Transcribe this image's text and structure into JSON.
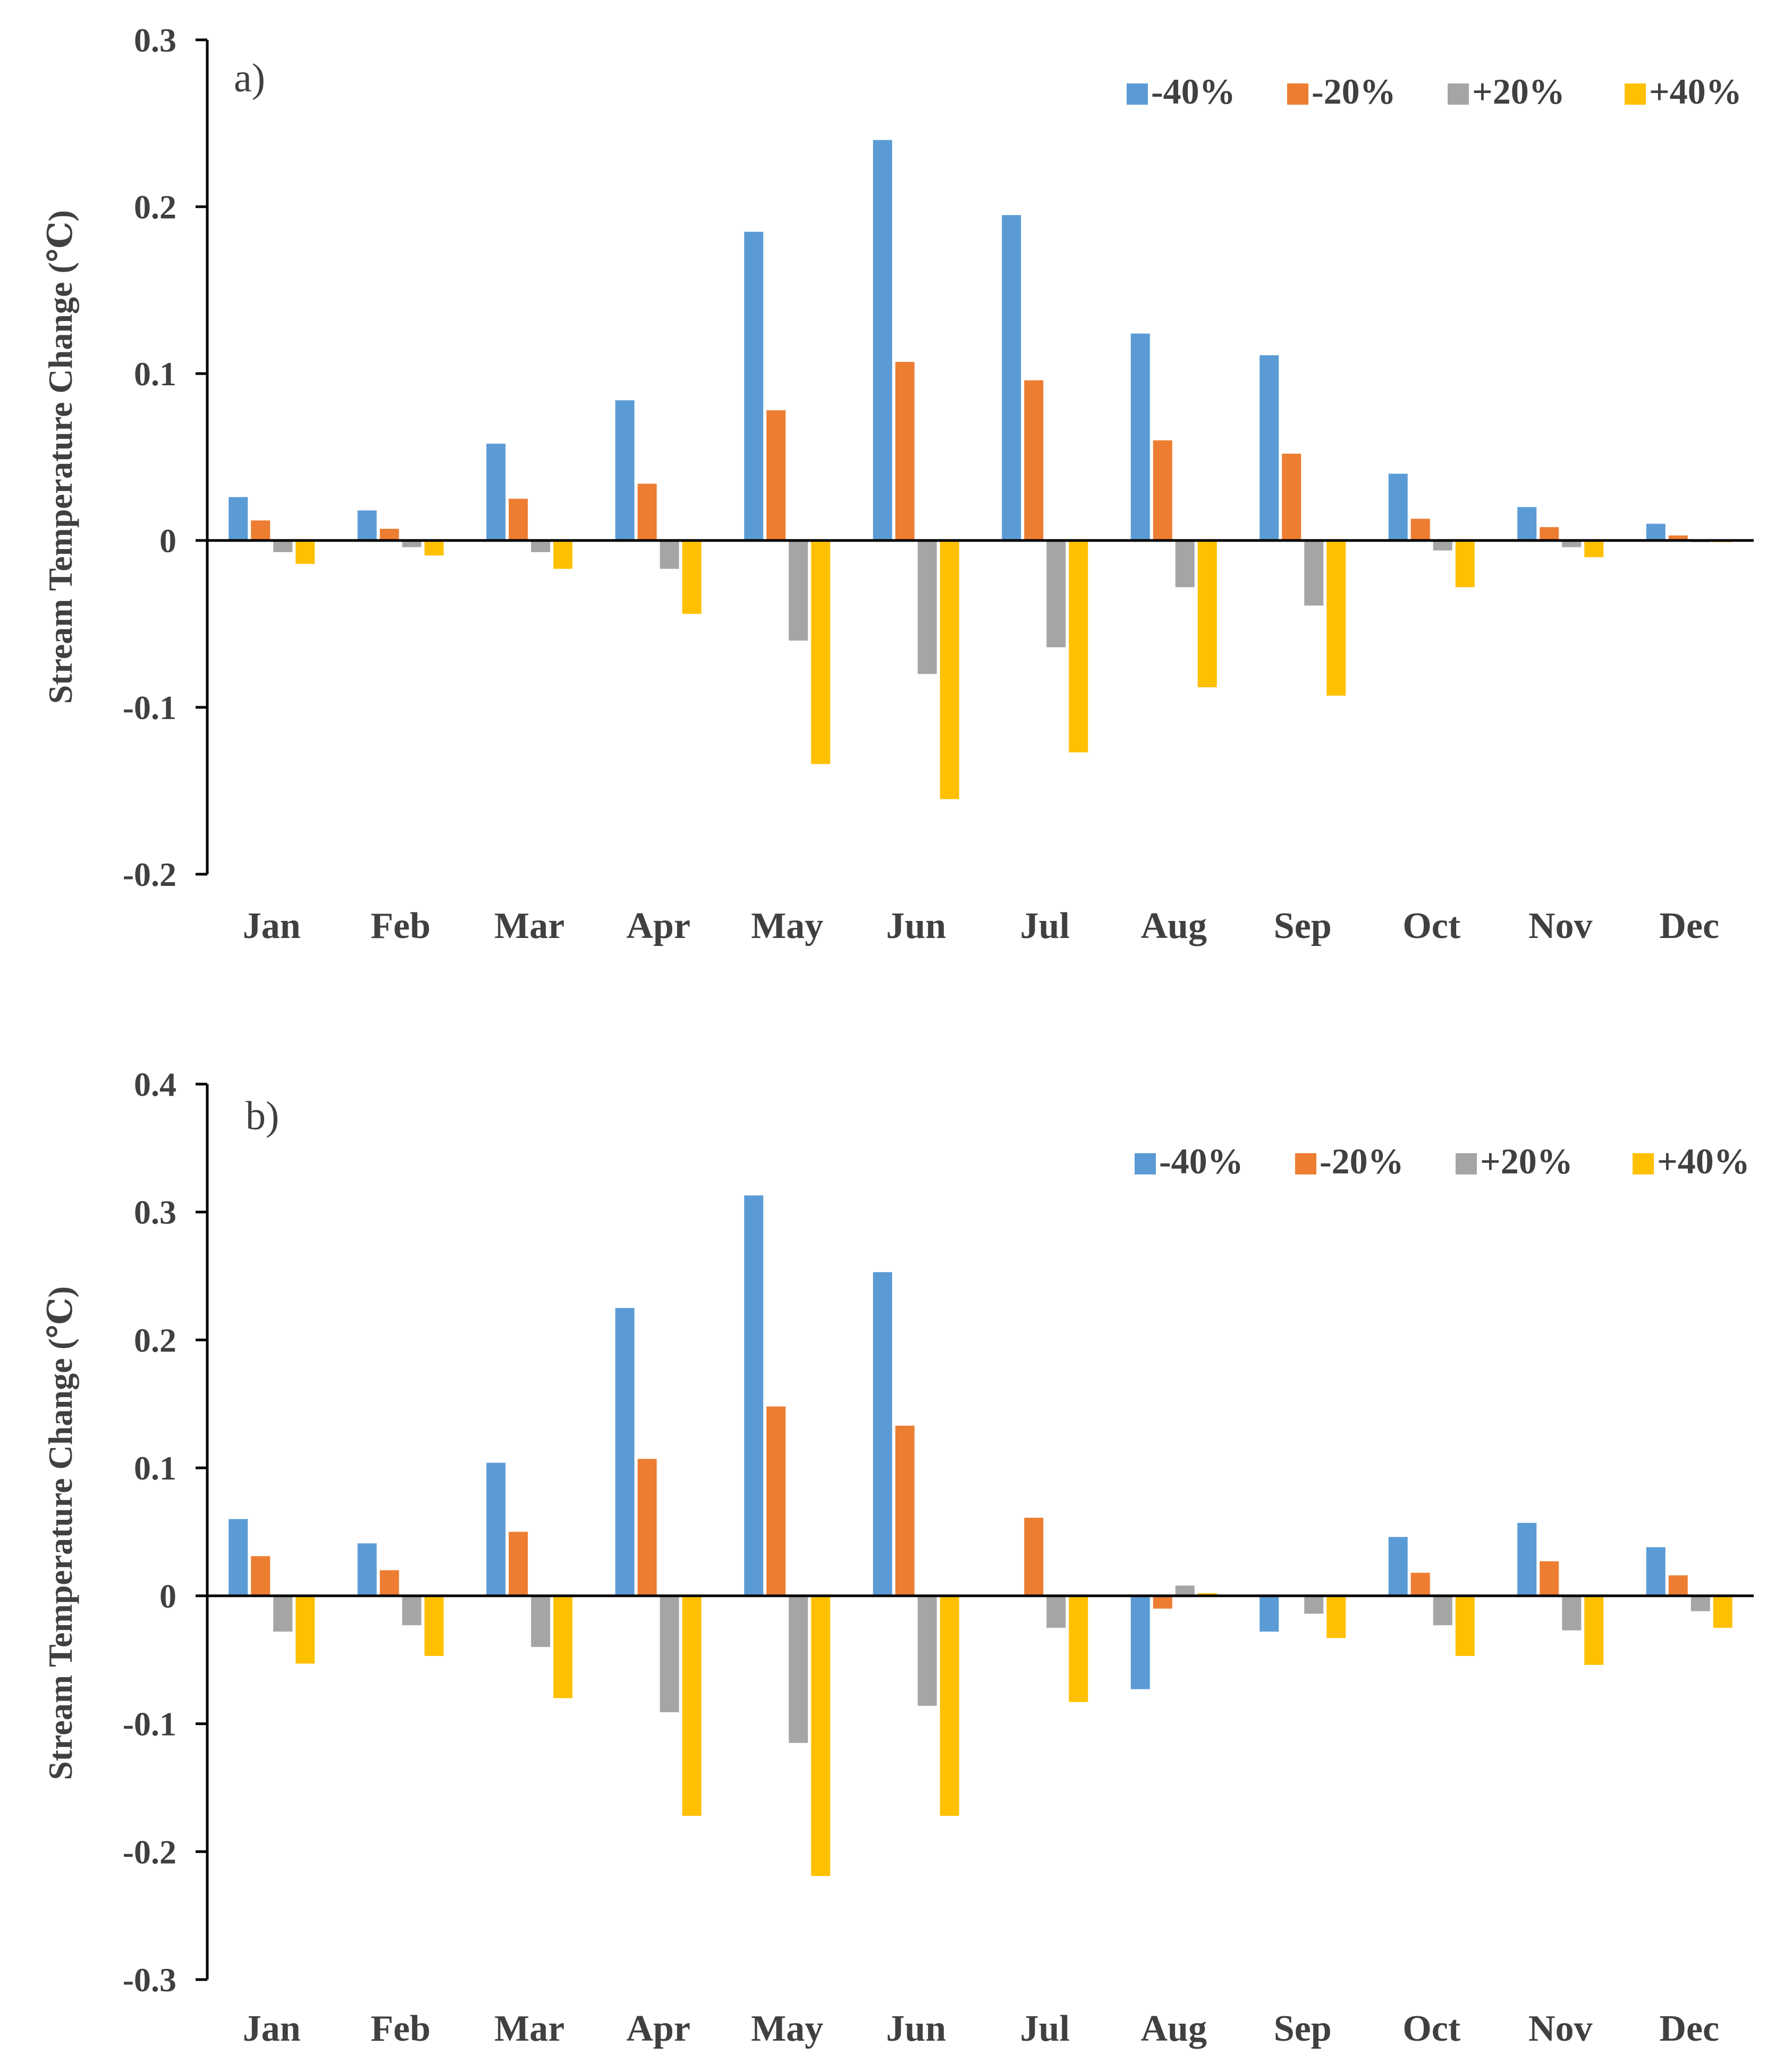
{
  "chart_data": [
    {
      "type": "bar",
      "panel_label": "a)",
      "ylabel": "Stream Temperature Change (℃)",
      "xlabel": "",
      "ylim": [
        -0.2,
        0.3
      ],
      "yticks": [
        -0.2,
        -0.1,
        0,
        0.1,
        0.2,
        0.3
      ],
      "ytick_labels": [
        "-0.2",
        "-0.1",
        "0",
        "0.1",
        "0.2",
        "0.3"
      ],
      "grid": false,
      "legend_position": "top-right",
      "categories": [
        "Jan",
        "Feb",
        "Mar",
        "Apr",
        "May",
        "Jun",
        "Jul",
        "Aug",
        "Sep",
        "Oct",
        "Nov",
        "Dec"
      ],
      "series": [
        {
          "name": "-40%",
          "color": "#5B9BD5",
          "values": [
            0.026,
            0.018,
            0.058,
            0.084,
            0.185,
            0.24,
            0.195,
            0.124,
            0.111,
            0.04,
            0.02,
            0.01
          ]
        },
        {
          "name": "-20%",
          "color": "#ED7D31",
          "values": [
            0.012,
            0.007,
            0.025,
            0.034,
            0.078,
            0.107,
            0.096,
            0.06,
            0.052,
            0.013,
            0.008,
            0.003
          ]
        },
        {
          "name": "+20%",
          "color": "#A5A5A5",
          "values": [
            -0.007,
            -0.004,
            -0.007,
            -0.017,
            -0.06,
            -0.08,
            -0.064,
            -0.028,
            -0.039,
            -0.006,
            -0.004,
            -0.001
          ]
        },
        {
          "name": "+40%",
          "color": "#FFC000",
          "values": [
            -0.014,
            -0.009,
            -0.017,
            -0.044,
            -0.134,
            -0.155,
            -0.127,
            -0.088,
            -0.093,
            -0.028,
            -0.01,
            -0.001
          ]
        }
      ]
    },
    {
      "type": "bar",
      "panel_label": "b)",
      "ylabel": "Stream Temperature Change (℃)",
      "xlabel": "",
      "ylim": [
        -0.3,
        0.4
      ],
      "yticks": [
        -0.3,
        -0.2,
        -0.1,
        0,
        0.1,
        0.2,
        0.3,
        0.4
      ],
      "ytick_labels": [
        "-0.3",
        "-0.2",
        "-0.1",
        "0",
        "0.1",
        "0.2",
        "0.3",
        "0.4"
      ],
      "grid": false,
      "legend_position": "top-right",
      "categories": [
        "Jan",
        "Feb",
        "Mar",
        "Apr",
        "May",
        "Jun",
        "Jul",
        "Aug",
        "Sep",
        "Oct",
        "Nov",
        "Dec"
      ],
      "series": [
        {
          "name": "-40%",
          "color": "#5B9BD5",
          "values": [
            0.06,
            0.041,
            0.104,
            0.225,
            0.313,
            0.253,
            0.0,
            -0.073,
            -0.028,
            0.046,
            0.057,
            0.038
          ]
        },
        {
          "name": "-20%",
          "color": "#ED7D31",
          "values": [
            0.031,
            0.02,
            0.05,
            0.107,
            0.148,
            0.133,
            0.061,
            -0.01,
            0.0,
            0.018,
            0.027,
            0.016
          ]
        },
        {
          "name": "+20%",
          "color": "#A5A5A5",
          "values": [
            -0.028,
            -0.023,
            -0.04,
            -0.091,
            -0.115,
            -0.086,
            -0.025,
            0.008,
            -0.014,
            -0.023,
            -0.027,
            -0.012
          ]
        },
        {
          "name": "+40%",
          "color": "#FFC000",
          "values": [
            -0.053,
            -0.047,
            -0.08,
            -0.172,
            -0.219,
            -0.172,
            -0.083,
            0.002,
            -0.033,
            -0.047,
            -0.054,
            -0.025
          ]
        }
      ]
    }
  ]
}
